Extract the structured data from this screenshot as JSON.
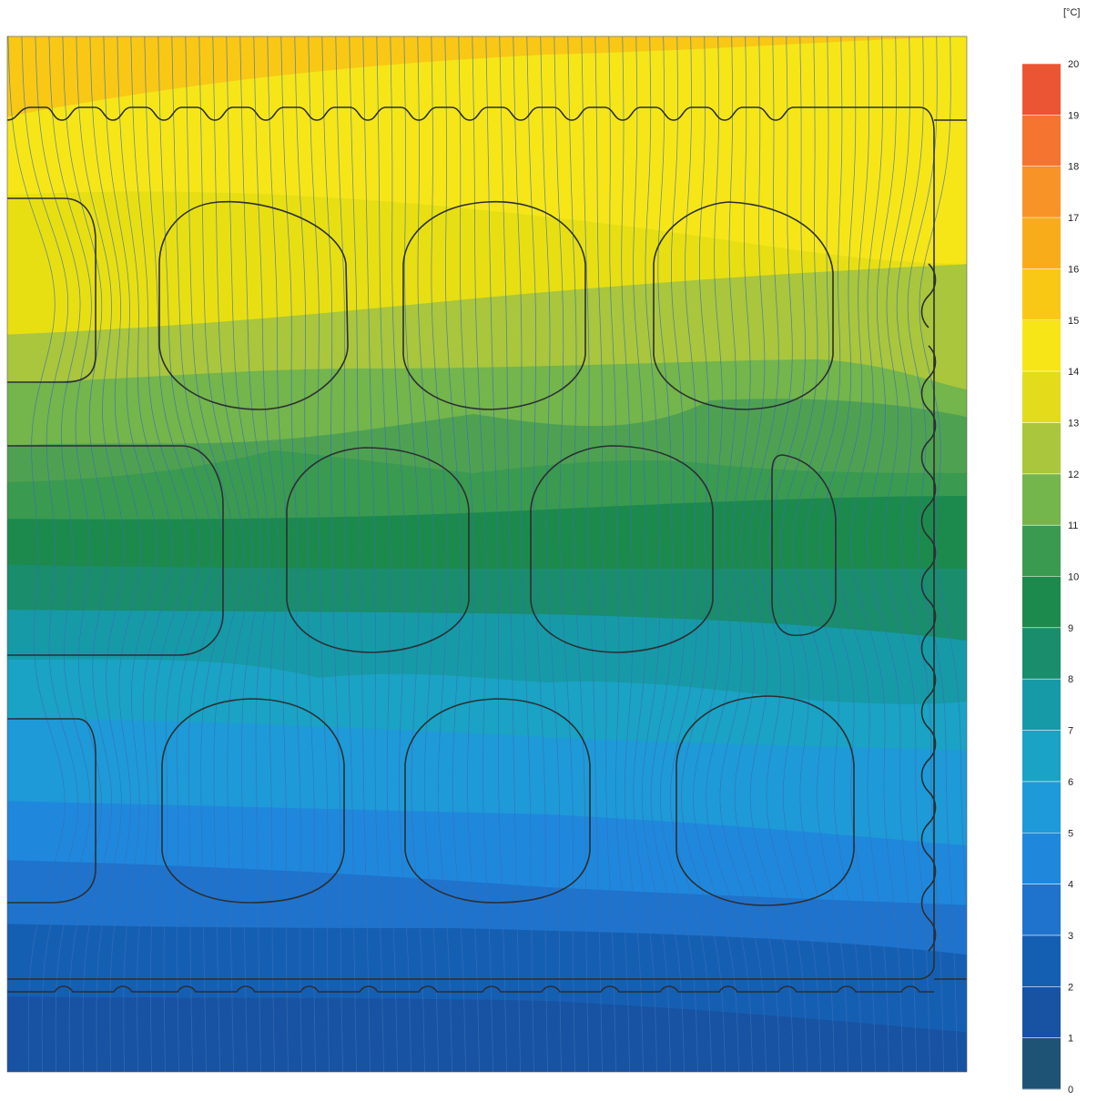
{
  "chart_data": {
    "type": "heatmap",
    "title": "",
    "xlabel": "",
    "ylabel": "",
    "colorbar": {
      "unit_label": "[°C]",
      "range": [
        0,
        20
      ],
      "ticks": [
        "0",
        "1",
        "2",
        "3",
        "4",
        "5",
        "6",
        "7",
        "8",
        "9",
        "10",
        "11",
        "12",
        "13",
        "14",
        "15",
        "16",
        "17",
        "18",
        "19",
        "20"
      ],
      "band_colors": [
        "#1f5375",
        "#1852a2",
        "#155fb3",
        "#1f73cc",
        "#1f88dd",
        "#1e9ad8",
        "#1aa3c4",
        "#169aa7",
        "#198d6c",
        "#1c8a4c",
        "#3a9a50",
        "#74b54c",
        "#a9c63c",
        "#e2dc1a",
        "#f6e618",
        "#f8c814",
        "#f8ac1a",
        "#f79327",
        "#f47430",
        "#ec5533"
      ]
    },
    "temperature_field": {
      "description_bands_left_to_right": [
        {
          "temp_band": "15-16",
          "region": "top edge"
        },
        {
          "temp_band": "13-15",
          "region": "upper zone"
        },
        {
          "temp_band": "8-11",
          "region": "upper-middle zone"
        },
        {
          "temp_band": "6-8",
          "region": "middle zone"
        },
        {
          "temp_band": "3-6",
          "region": "lower-middle zone"
        },
        {
          "temp_band": "1-3",
          "region": "bottom zone"
        }
      ]
    }
  }
}
